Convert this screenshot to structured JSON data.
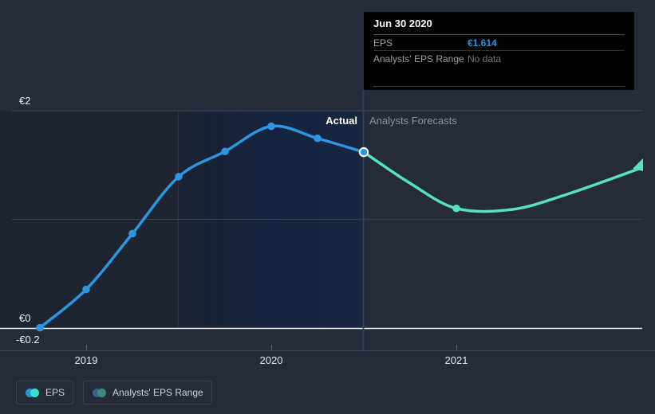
{
  "tooltip": {
    "title": "Jun 30 2020",
    "rows": [
      {
        "label": "EPS",
        "value": "€1.614",
        "value_color": "#2196e3"
      },
      {
        "label": "Analysts' EPS Range",
        "value": "No data",
        "value_color": "#6e747d"
      }
    ]
  },
  "legend": {
    "items": [
      {
        "label": "EPS",
        "color_left": "#2394df",
        "color_right": "#3bdfc9"
      },
      {
        "label": "Analysts' EPS Range",
        "color_left": "#31658b",
        "color_right": "#41897f"
      }
    ]
  },
  "colors": {
    "background": "#252b39",
    "actual_line": "#2b97e3",
    "forecast_line": "#55e2c2",
    "zero_line": "#eef1f4",
    "gridline": "#434b5a",
    "divider": "#32425c",
    "tooltip_bg": "#020202"
  },
  "chart_data": {
    "type": "line",
    "title": "EPS actual vs analysts forecast",
    "currency": "€",
    "x_axis": {
      "labels": [
        "2019",
        "2020",
        "2021"
      ],
      "ticks": [
        2019,
        2020,
        2021
      ]
    },
    "y_axis": {
      "labels": [
        "€2",
        "€0",
        "-€0.2"
      ],
      "ticks": [
        2,
        0,
        -0.2
      ],
      "ylim": [
        -0.2,
        2.2
      ]
    },
    "regions": {
      "actual_label": "Actual",
      "forecast_label": "Analysts Forecasts",
      "divider_x": 2020.5,
      "highlight_band_x": [
        2019.5,
        2020.5
      ]
    },
    "grid": "horizontal-only",
    "legend_position": "bottom-left",
    "series": [
      {
        "name": "EPS",
        "color": "#2b97e3",
        "x": [
          2018.75,
          2019.0,
          2019.25,
          2019.5,
          2019.75,
          2020.0,
          2020.25,
          2020.5
        ],
        "values": [
          0.01,
          0.36,
          0.87,
          1.39,
          1.62,
          1.85,
          1.74,
          1.614
        ],
        "dots": "all"
      },
      {
        "name": "Analysts Forecast EPS",
        "color": "#55e2c2",
        "x": [
          2020.5,
          2020.75,
          2021.0,
          2021.3,
          2021.6,
          2022.0
        ],
        "values": [
          1.614,
          1.33,
          1.1,
          1.09,
          1.23,
          1.47
        ],
        "dot_x": [
          2021.0
        ],
        "arrow_end": true
      }
    ],
    "highlight_point": {
      "x": 2020.5,
      "value": 1.614,
      "date": "Jun 30 2020"
    }
  }
}
